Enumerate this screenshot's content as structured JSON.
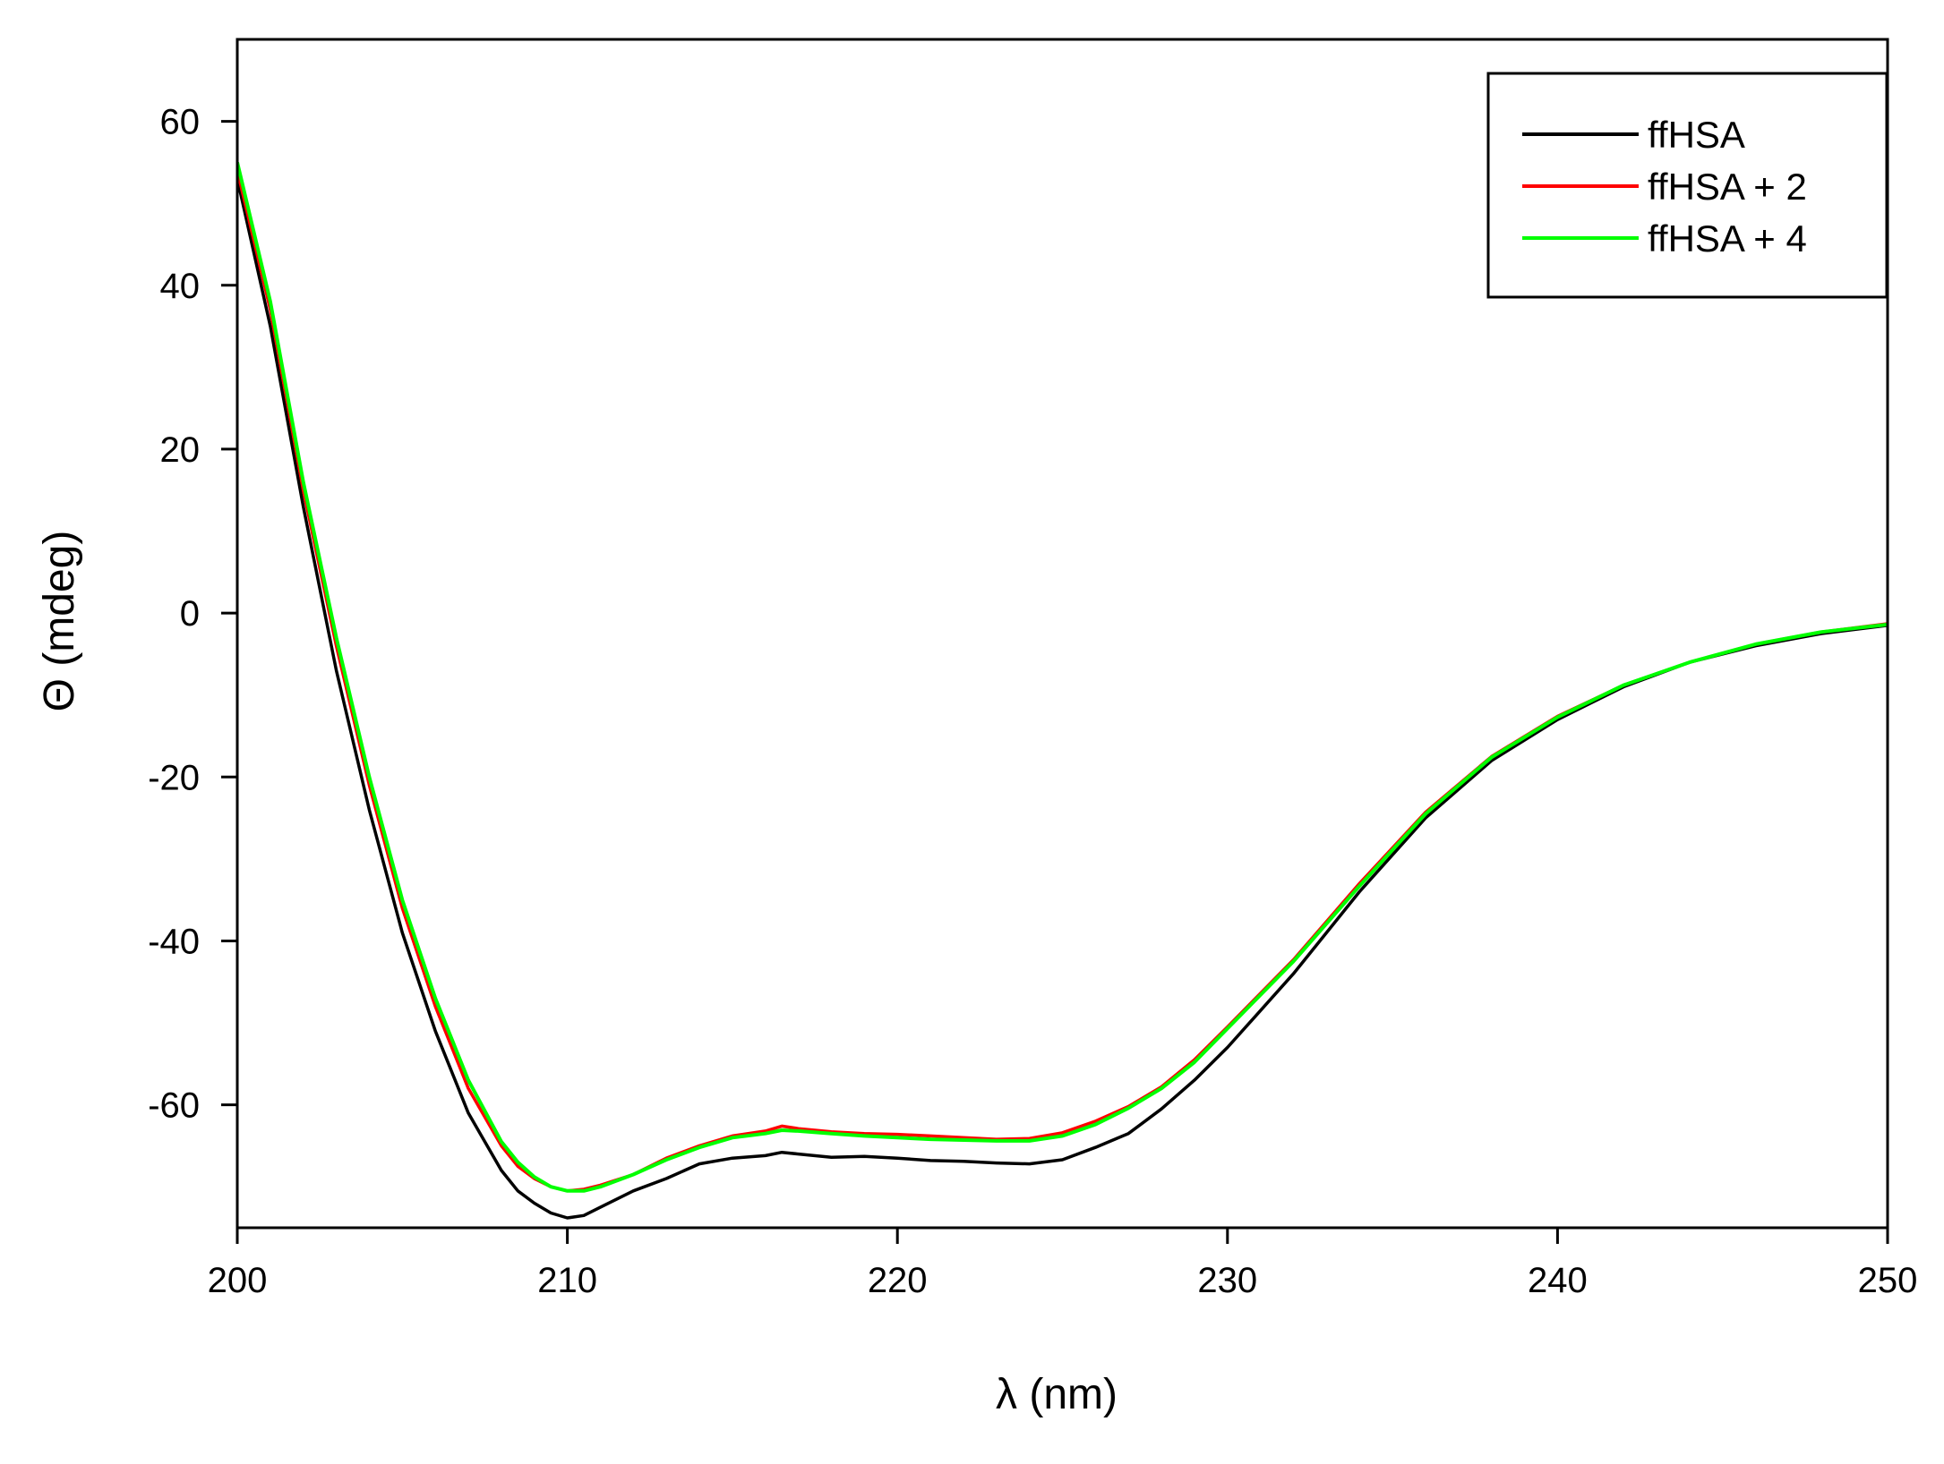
{
  "chart_data": {
    "type": "line",
    "title": "",
    "xlabel": "λ (nm)",
    "ylabel": "Θ (mdeg)",
    "xlim": [
      200,
      250
    ],
    "ylim": [
      -75,
      70
    ],
    "xticks": [
      200,
      210,
      220,
      230,
      240,
      250
    ],
    "yticks": [
      -60,
      -40,
      -20,
      0,
      20,
      40,
      60
    ],
    "grid": false,
    "legend_position": "top-right",
    "series": [
      {
        "name": "ffHSA",
        "color": "#000000",
        "x": [
          200,
          201,
          202,
          203,
          204,
          205,
          206,
          207,
          208,
          208.5,
          209,
          209.5,
          210,
          210.5,
          211,
          212,
          213,
          214,
          215,
          216,
          216.5,
          217,
          218,
          219,
          220,
          221,
          222,
          223,
          224,
          225,
          226,
          227,
          228,
          229,
          230,
          232,
          234,
          236,
          238,
          240,
          242,
          244,
          246,
          248,
          250
        ],
        "values": [
          53,
          35,
          13,
          -7,
          -24,
          -39,
          -51,
          -61,
          -68,
          -70.5,
          -72,
          -73.2,
          -73.8,
          -73.5,
          -72.5,
          -70.5,
          -69,
          -67.2,
          -66.5,
          -66.2,
          -65.8,
          -66,
          -66.4,
          -66.3,
          -66.5,
          -66.8,
          -66.9,
          -67.1,
          -67.2,
          -66.7,
          -65.2,
          -63.5,
          -60.5,
          -57,
          -53,
          -44,
          -34,
          -25,
          -18,
          -13,
          -9,
          -6,
          -4,
          -2.5,
          -1.5
        ]
      },
      {
        "name": "ffHSA + 2",
        "color": "#ff0000",
        "x": [
          200,
          201,
          202,
          203,
          204,
          205,
          206,
          207,
          208,
          208.5,
          209,
          209.5,
          210,
          210.5,
          211,
          212,
          213,
          214,
          215,
          216,
          216.5,
          217,
          218,
          219,
          220,
          221,
          222,
          223,
          224,
          225,
          226,
          227,
          228,
          229,
          230,
          232,
          234,
          236,
          238,
          240,
          242,
          244,
          246,
          248,
          250
        ],
        "values": [
          54,
          37,
          15,
          -4,
          -21,
          -36,
          -48,
          -58,
          -65,
          -67.5,
          -69,
          -70,
          -70.5,
          -70.3,
          -69.8,
          -68.5,
          -66.5,
          -65,
          -63.8,
          -63.2,
          -62.6,
          -62.9,
          -63.3,
          -63.5,
          -63.6,
          -63.8,
          -64,
          -64.2,
          -64.1,
          -63.4,
          -62,
          -60.2,
          -57.8,
          -54.5,
          -50.5,
          -42.3,
          -33,
          -24.3,
          -17.5,
          -12.6,
          -8.8,
          -6,
          -3.8,
          -2.3,
          -1.3
        ]
      },
      {
        "name": "ffHSA + 4",
        "color": "#00ff00",
        "x": [
          200,
          201,
          202,
          203,
          204,
          205,
          206,
          207,
          208,
          208.5,
          209,
          209.5,
          210,
          210.5,
          211,
          212,
          213,
          214,
          215,
          216,
          216.5,
          217,
          218,
          219,
          220,
          221,
          222,
          223,
          224,
          225,
          226,
          227,
          228,
          229,
          230,
          232,
          234,
          236,
          238,
          240,
          242,
          244,
          246,
          248,
          250
        ],
        "values": [
          55,
          38,
          16,
          -3,
          -20,
          -35,
          -47,
          -57,
          -64.5,
          -67,
          -68.8,
          -70,
          -70.5,
          -70.5,
          -70,
          -68.5,
          -66.7,
          -65.2,
          -64,
          -63.5,
          -63.1,
          -63.2,
          -63.5,
          -63.8,
          -64,
          -64.2,
          -64.3,
          -64.4,
          -64.4,
          -63.8,
          -62.4,
          -60.4,
          -58,
          -54.8,
          -50.7,
          -42.5,
          -33.3,
          -24.5,
          -17.6,
          -12.7,
          -8.8,
          -6,
          -3.8,
          -2.3,
          -1.4
        ]
      }
    ]
  }
}
